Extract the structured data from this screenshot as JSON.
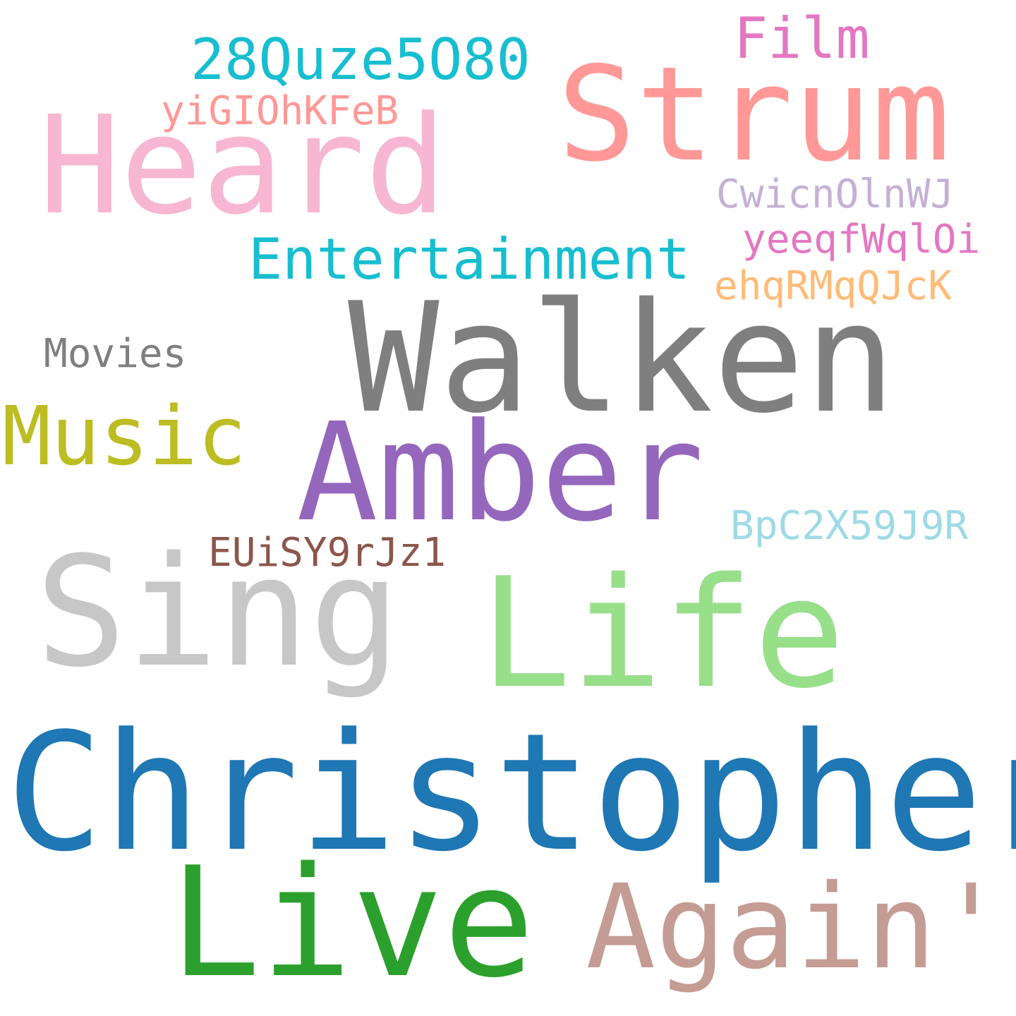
{
  "words": {
    "christopher": {
      "text": "Christopher",
      "color": "#1f77b4"
    },
    "walken": {
      "text": "Walken",
      "color": "#7f7f7f"
    },
    "sing": {
      "text": "Sing",
      "color": "#c7c7c7"
    },
    "life": {
      "text": "Life",
      "color": "#98df8a"
    },
    "live": {
      "text": "Live",
      "color": "#2ca02c"
    },
    "amber": {
      "text": "Amber",
      "color": "#9467bd"
    },
    "strum": {
      "text": "Strum",
      "color": "#ff9896"
    },
    "heard": {
      "text": "Heard",
      "color": "#f7b6d2"
    },
    "again": {
      "text": "Again'",
      "color": "#c49c94"
    },
    "music": {
      "text": "Music",
      "color": "#bcbd22"
    },
    "film": {
      "text": "Film",
      "color": "#e377c2"
    },
    "code_28q": {
      "text": "28Quze5O80",
      "color": "#17becf"
    },
    "entertainment": {
      "text": "Entertainment",
      "color": "#17becf"
    },
    "yigi": {
      "text": "yiGIOhKFeB",
      "color": "#ff9896"
    },
    "cwic": {
      "text": "CwicnOlnWJ",
      "color": "#c5b0d5"
    },
    "yeeq": {
      "text": "yeeqfWqlOi",
      "color": "#e377c2"
    },
    "ehq": {
      "text": "ehqRMqQJcK",
      "color": "#ffbb78"
    },
    "movies": {
      "text": "Movies",
      "color": "#7f7f7f"
    },
    "bpc": {
      "text": "BpC2X59J9R",
      "color": "#9edae5"
    },
    "euis": {
      "text": "EUiSY9rJz1",
      "color": "#8c564b"
    }
  }
}
